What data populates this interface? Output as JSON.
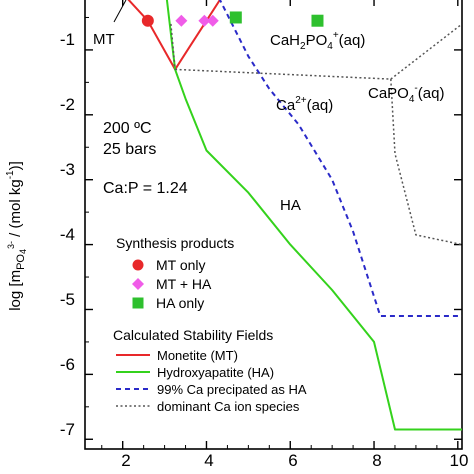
{
  "chart_data": {
    "type": "line",
    "xlabel": "",
    "ylabel": "log [m",
    "ylabel_sub": "PO",
    "ylabel_sub2": "4",
    "ylabel_sup": "3-",
    "ylabel_tail": " / (mol kg",
    "ylabel_sup2": "-1",
    "ylabel_end": ")]",
    "xlim": [
      1.1,
      10.1
    ],
    "ylim": [
      -7.15,
      -0.2
    ],
    "x_ticks": [
      2,
      4,
      6,
      8,
      10
    ],
    "y_ticks": [
      -1,
      -2,
      -3,
      -4,
      -5,
      -6,
      -7
    ],
    "tick_labels_x": [
      "2",
      "4",
      "6",
      "8",
      "10"
    ],
    "tick_labels_y": [
      "-1",
      "-2",
      "-3",
      "-4",
      "-5",
      "-6",
      "-7"
    ],
    "conditions": [
      "200 ºC",
      "25 bars",
      "Ca:P = 1.24"
    ],
    "region_labels": {
      "mt": "MT",
      "ha": "HA",
      "cah2po4_main": "CaH",
      "cah2po4_sub": "2",
      "cah2po4_mid": "PO",
      "cah2po4_sub2": "4",
      "cah2po4_sup": "+",
      "cah2po4_tail": "(aq)",
      "ca_main": "Ca",
      "ca_sup": "2+",
      "ca_tail": "(aq)",
      "capo4_main": "CaPO",
      "capo4_sub": "4",
      "capo4_sup": "-",
      "capo4_tail": "(aq)"
    },
    "series": [
      {
        "name": "Monetite (MT)",
        "color": "#e8282a",
        "style": "solid",
        "x": [
          1.2,
          2.1,
          2.6,
          3.25,
          3.6,
          4.0,
          4.35,
          4.45
        ],
        "y": [
          -0.2,
          -0.2,
          -0.55,
          -1.3,
          -0.95,
          -0.55,
          -0.2,
          -0.2
        ]
      },
      {
        "name": "Hydroxyapatite (HA)",
        "color": "#34d21c",
        "style": "solid",
        "x": [
          3.05,
          3.25,
          3.5,
          4.0,
          5.0,
          6.0,
          7.0,
          8.0,
          8.5,
          10.1
        ],
        "y": [
          -0.2,
          -1.3,
          -1.75,
          -2.55,
          -3.2,
          -4.0,
          -4.7,
          -5.5,
          -6.85,
          -6.85
        ]
      },
      {
        "name": "99% Ca precipated as HA",
        "color": "#2a2ac8",
        "style": "dashed",
        "x": [
          4.3,
          5.0,
          5.5,
          6.2,
          7.0,
          7.5,
          8.15,
          10.1
        ],
        "y": [
          -0.2,
          -1.1,
          -1.6,
          -2.15,
          -3.0,
          -3.8,
          -5.1,
          -5.1
        ]
      },
      {
        "name": "dominant Ca ion species",
        "color": "#555555",
        "style": "dotted",
        "segments": [
          {
            "x": [
              3.15,
              3.25
            ],
            "y": [
              -0.6,
              -1.3
            ]
          },
          {
            "x": [
              3.25,
              8.4
            ],
            "y": [
              -1.3,
              -1.45
            ]
          },
          {
            "x": [
              8.4,
              10.1
            ],
            "y": [
              -1.45,
              -0.6
            ]
          },
          {
            "x": [
              8.4,
              8.5,
              9.0,
              10.1
            ],
            "y": [
              -1.45,
              -2.6,
              -3.85,
              -4.0
            ]
          }
        ]
      }
    ],
    "points": [
      {
        "name": "MT only",
        "color": "#e8282a",
        "marker": "circle",
        "x": [
          2.6
        ],
        "y": [
          -0.55
        ]
      },
      {
        "name": "MT + HA",
        "color": "#f05ce8",
        "marker": "diamond",
        "x": [
          3.4,
          3.95,
          4.15
        ],
        "y": [
          -0.55,
          -0.55,
          -0.55
        ]
      },
      {
        "name": "HA only",
        "color": "#2ec02e",
        "marker": "square",
        "x": [
          4.7,
          6.65
        ],
        "y": [
          -0.5,
          -0.55
        ]
      }
    ],
    "legend": {
      "products_title": "Synthesis products",
      "products": [
        "MT only",
        "MT + HA",
        "HA only"
      ],
      "fields_title": "Calculated Stability Fields",
      "fields": [
        "Monetite (MT)",
        "Hydroxyapatite (HA)",
        "99% Ca precipated as HA",
        "dominant Ca ion species"
      ]
    }
  }
}
